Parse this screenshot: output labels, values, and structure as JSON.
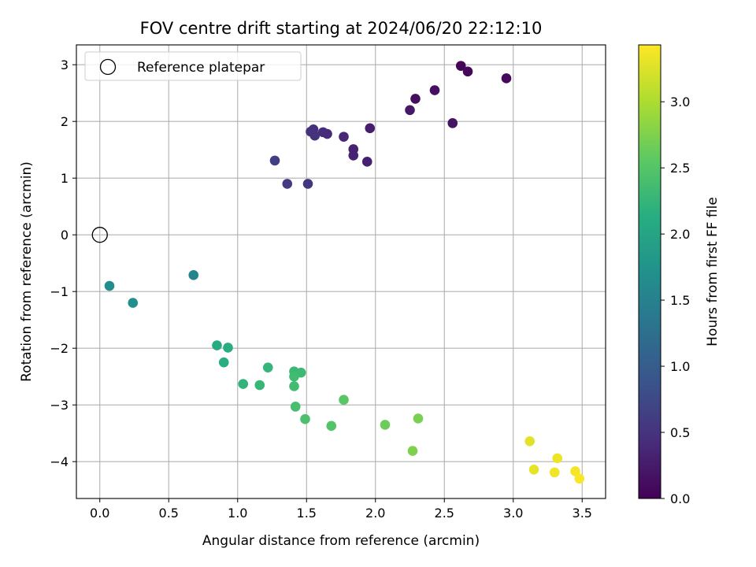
{
  "chart_data": {
    "type": "scatter",
    "title": "FOV centre drift starting at 2024/06/20 22:12:10",
    "xlabel": "Angular distance from reference (arcmin)",
    "ylabel": "Rotation from reference (arcmin)",
    "xlim": [
      -0.17,
      3.67
    ],
    "ylim": [
      -4.65,
      3.35
    ],
    "xticks": [
      0.0,
      0.5,
      1.0,
      1.5,
      2.0,
      2.5,
      3.0,
      3.5
    ],
    "xtick_labels": [
      "0.0",
      "0.5",
      "1.0",
      "1.5",
      "2.0",
      "2.5",
      "3.0",
      "3.5"
    ],
    "yticks": [
      -4,
      -3,
      -2,
      -1,
      0,
      1,
      2,
      3
    ],
    "ytick_labels": [
      "−4",
      "−3",
      "−2",
      "−1",
      "0",
      "1",
      "2",
      "3"
    ],
    "grid": true,
    "legend": {
      "placement": "top-left",
      "entries": [
        {
          "label": "Reference platepar",
          "marker": "open-circle"
        }
      ]
    },
    "reference_point": {
      "x": 0.0,
      "y": 0.0
    },
    "colorbar": {
      "label": "Hours from first FF file",
      "colormap": "viridis",
      "range": [
        0.0,
        3.43
      ],
      "ticks": [
        0.0,
        0.5,
        1.0,
        1.5,
        2.0,
        2.5,
        3.0
      ],
      "tick_labels": [
        "0.0",
        "0.5",
        "1.0",
        "1.5",
        "2.0",
        "2.5",
        "3.0"
      ]
    },
    "points": [
      {
        "x": 2.62,
        "y": 2.98,
        "t": 0.03
      },
      {
        "x": 2.67,
        "y": 2.88,
        "t": 0.06
      },
      {
        "x": 2.95,
        "y": 2.76,
        "t": 0.09
      },
      {
        "x": 2.29,
        "y": 2.4,
        "t": 0.12
      },
      {
        "x": 2.43,
        "y": 2.55,
        "t": 0.15
      },
      {
        "x": 2.56,
        "y": 1.97,
        "t": 0.18
      },
      {
        "x": 2.25,
        "y": 2.2,
        "t": 0.22
      },
      {
        "x": 1.96,
        "y": 1.88,
        "t": 0.28
      },
      {
        "x": 1.94,
        "y": 1.29,
        "t": 0.3
      },
      {
        "x": 1.84,
        "y": 1.51,
        "t": 0.32
      },
      {
        "x": 1.84,
        "y": 1.4,
        "t": 0.34
      },
      {
        "x": 1.77,
        "y": 1.73,
        "t": 0.37
      },
      {
        "x": 1.65,
        "y": 1.78,
        "t": 0.4
      },
      {
        "x": 1.62,
        "y": 1.81,
        "t": 0.42
      },
      {
        "x": 1.55,
        "y": 1.86,
        "t": 0.45
      },
      {
        "x": 1.53,
        "y": 1.82,
        "t": 0.47
      },
      {
        "x": 1.56,
        "y": 1.75,
        "t": 0.49
      },
      {
        "x": 1.51,
        "y": 0.9,
        "t": 0.55
      },
      {
        "x": 1.36,
        "y": 0.9,
        "t": 0.58
      },
      {
        "x": 1.27,
        "y": 1.31,
        "t": 0.62
      },
      {
        "x": 0.68,
        "y": -0.71,
        "t": 1.55
      },
      {
        "x": 0.07,
        "y": -0.9,
        "t": 1.65
      },
      {
        "x": 0.24,
        "y": -1.2,
        "t": 1.7
      },
      {
        "x": 0.85,
        "y": -1.95,
        "t": 2.1
      },
      {
        "x": 0.93,
        "y": -1.99,
        "t": 2.12
      },
      {
        "x": 0.9,
        "y": -2.25,
        "t": 2.15
      },
      {
        "x": 1.04,
        "y": -2.63,
        "t": 2.22
      },
      {
        "x": 1.22,
        "y": -2.34,
        "t": 2.25
      },
      {
        "x": 1.16,
        "y": -2.65,
        "t": 2.27
      },
      {
        "x": 1.41,
        "y": -2.41,
        "t": 2.3
      },
      {
        "x": 1.46,
        "y": -2.43,
        "t": 2.32
      },
      {
        "x": 1.41,
        "y": -2.5,
        "t": 2.34
      },
      {
        "x": 1.41,
        "y": -2.67,
        "t": 2.36
      },
      {
        "x": 1.42,
        "y": -3.03,
        "t": 2.4
      },
      {
        "x": 1.49,
        "y": -3.25,
        "t": 2.43
      },
      {
        "x": 1.68,
        "y": -3.37,
        "t": 2.48
      },
      {
        "x": 1.77,
        "y": -2.91,
        "t": 2.53
      },
      {
        "x": 2.07,
        "y": -3.35,
        "t": 2.65
      },
      {
        "x": 2.31,
        "y": -3.24,
        "t": 2.72
      },
      {
        "x": 2.27,
        "y": -3.81,
        "t": 2.75
      },
      {
        "x": 3.12,
        "y": -3.64,
        "t": 3.28
      },
      {
        "x": 3.15,
        "y": -4.14,
        "t": 3.31
      },
      {
        "x": 3.32,
        "y": -3.94,
        "t": 3.34
      },
      {
        "x": 3.3,
        "y": -4.19,
        "t": 3.36
      },
      {
        "x": 3.45,
        "y": -4.17,
        "t": 3.38
      },
      {
        "x": 3.48,
        "y": -4.3,
        "t": 3.41
      }
    ]
  }
}
